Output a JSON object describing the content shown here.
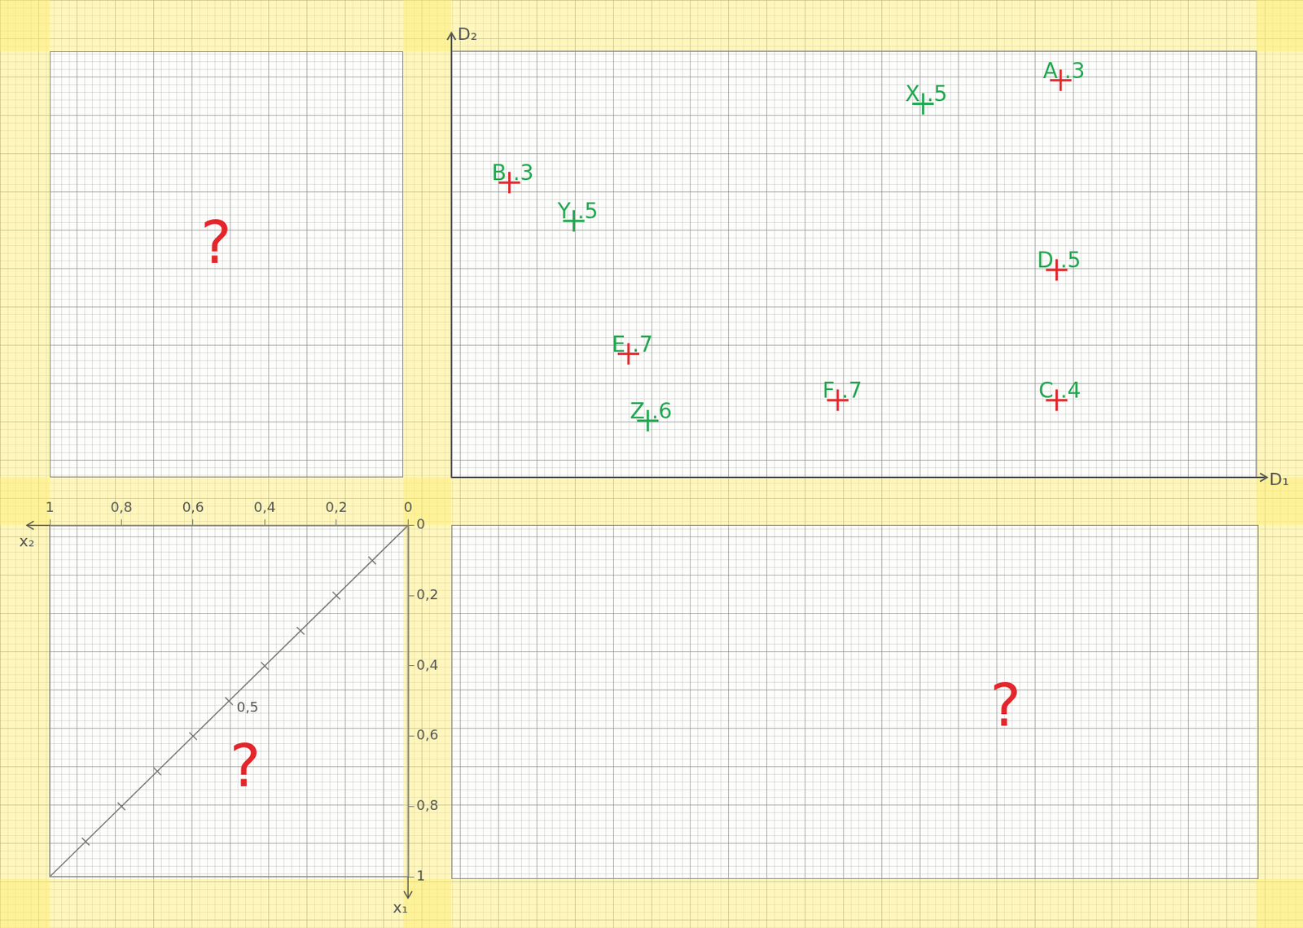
{
  "chart_data": [
    {
      "type": "scatter",
      "x_label": "D₁",
      "y_label": "D₂",
      "xlim": [
        0,
        1
      ],
      "ylim": [
        0,
        1
      ],
      "tick_labels": false,
      "marker": "cross",
      "series": [
        {
          "color": "#e3262b",
          "points": [
            {
              "label": "A",
              "x": 0.757,
              "y": 0.932,
              "value": 0.3,
              "value_label": ".3"
            },
            {
              "label": "B",
              "x": 0.072,
              "y": 0.692,
              "value": 0.3,
              "value_label": ".3"
            },
            {
              "label": "C",
              "x": 0.752,
              "y": 0.181,
              "value": 0.4,
              "value_label": ".4"
            },
            {
              "label": "D",
              "x": 0.752,
              "y": 0.487,
              "value": 0.5,
              "value_label": ".5"
            },
            {
              "label": "E",
              "x": 0.22,
              "y": 0.29,
              "value": 0.7,
              "value_label": ".7"
            },
            {
              "label": "F",
              "x": 0.48,
              "y": 0.181,
              "value": 0.7,
              "value_label": ".7"
            }
          ]
        },
        {
          "color": "#1fa84f",
          "points": [
            {
              "label": "X",
              "x": 0.586,
              "y": 0.877,
              "value": 0.5,
              "value_label": ".5"
            },
            {
              "label": "Y",
              "x": 0.152,
              "y": 0.602,
              "value": 0.5,
              "value_label": ".5"
            },
            {
              "label": "Z",
              "x": 0.244,
              "y": 0.133,
              "value": 0.6,
              "value_label": ".6"
            }
          ]
        }
      ]
    },
    {
      "type": "line",
      "x_label": "x₂",
      "y_label": "x₁",
      "xlim": [
        1,
        0
      ],
      "ylim": [
        1,
        0
      ],
      "xticks": [
        1,
        {
          "value": 0.8,
          "label": "0,8"
        },
        {
          "value": 0.6,
          "label": "0,6"
        },
        {
          "value": 0.4,
          "label": "0,4"
        },
        {
          "value": 0.2,
          "label": "0,2"
        },
        0
      ],
      "yticks": [
        0,
        {
          "value": 0.2,
          "label": "0,2"
        },
        {
          "value": 0.4,
          "label": "0,4"
        },
        {
          "value": 0.6,
          "label": "0,6"
        },
        {
          "value": 0.8,
          "label": "0,8"
        },
        1
      ],
      "series": [
        {
          "color": "#777777",
          "x": [
            0,
            1
          ],
          "values": [
            0,
            1
          ],
          "marks": [
            0.1,
            0.2,
            0.3,
            0.4,
            0.5,
            0.6,
            0.7,
            0.8,
            0.9
          ]
        }
      ],
      "annotations": [
        {
          "text": "0,5",
          "x": 0.5,
          "y": 0.5
        }
      ]
    }
  ],
  "panels": {
    "top_left": "?",
    "bottom_left": "?",
    "bottom_right": "?"
  }
}
